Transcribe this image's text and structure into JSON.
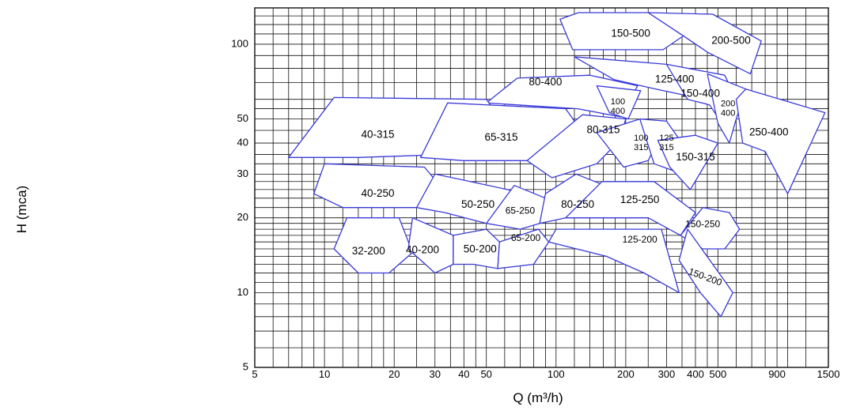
{
  "chart_data": {
    "type": "area",
    "xlabel": "Q (m³/h)",
    "ylabel": "H (mca)",
    "x_scale": "log",
    "y_scale": "log",
    "xlim": [
      5,
      1500
    ],
    "ylim": [
      5,
      140
    ],
    "grid": true,
    "x_ticks": [
      {
        "value": 5,
        "label": "5"
      },
      {
        "value": 10,
        "label": "10"
      },
      {
        "value": 20,
        "label": "20"
      },
      {
        "value": 30,
        "label": "30"
      },
      {
        "value": 40,
        "label": "40"
      },
      {
        "value": 50,
        "label": "50"
      },
      {
        "value": 100,
        "label": "100"
      },
      {
        "value": 200,
        "label": "200"
      },
      {
        "value": 300,
        "label": "300"
      },
      {
        "value": 400,
        "label": "400"
      },
      {
        "value": 500,
        "label": "500"
      },
      {
        "value": 900,
        "label": "900"
      },
      {
        "value": 1500,
        "label": "1500"
      }
    ],
    "y_ticks": [
      {
        "value": 5,
        "label": "5"
      },
      {
        "value": 10,
        "label": "10"
      },
      {
        "value": 20,
        "label": "20"
      },
      {
        "value": 30,
        "label": "30"
      },
      {
        "value": 40,
        "label": "40"
      },
      {
        "value": 50,
        "label": "50"
      },
      {
        "value": 100,
        "label": "100"
      }
    ],
    "colors": {
      "outline": "#3a3ad8",
      "grid": "#111111",
      "text": "#000000"
    },
    "regions": [
      {
        "name": "150-500",
        "label_at": [
          210,
          110
        ],
        "poly": [
          [
            104,
            126
          ],
          [
            125,
            134
          ],
          [
            250,
            134
          ],
          [
            355,
            108
          ],
          [
            290,
            95
          ],
          [
            118,
            95
          ]
        ]
      },
      {
        "name": "200-500",
        "label_at": [
          570,
          103
        ],
        "poly": [
          [
            250,
            134
          ],
          [
            475,
            132
          ],
          [
            770,
            103
          ],
          [
            690,
            76
          ],
          [
            450,
            93
          ],
          [
            355,
            108
          ]
        ]
      },
      {
        "name": "80-400",
        "label_at": [
          90,
          70
        ],
        "poly": [
          [
            50,
            58
          ],
          [
            68,
            73
          ],
          [
            140,
            75
          ],
          [
            225,
            68
          ],
          [
            190,
            51
          ],
          [
            124,
            55
          ]
        ]
      },
      {
        "name": "125-400",
        "label_at": [
          325,
          72
        ],
        "poly": [
          [
            120,
            89
          ],
          [
            300,
            83
          ],
          [
            450,
            76
          ],
          [
            400,
            61
          ],
          [
            270,
            66
          ],
          [
            178,
            72
          ]
        ]
      },
      {
        "name": "100 400",
        "label_at": [
          185,
          56
        ],
        "lines": [
          "100",
          "400"
        ],
        "poly": [
          [
            150,
            68
          ],
          [
            232,
            65
          ],
          [
            205,
            50
          ],
          [
            170,
            53
          ]
        ]
      },
      {
        "name": "150-400",
        "label_at": [
          420,
          63
        ],
        "poly": [
          [
            300,
            83
          ],
          [
            535,
            75
          ],
          [
            600,
            60
          ],
          [
            520,
            48
          ],
          [
            460,
            57
          ],
          [
            370,
            60
          ]
        ]
      },
      {
        "name": "200 400",
        "label_at": [
          553,
          55
        ],
        "lines": [
          "200",
          "400"
        ],
        "poly": [
          [
            450,
            76
          ],
          [
            660,
            66
          ],
          [
            600,
            50
          ],
          [
            560,
            40
          ],
          [
            500,
            48
          ]
        ]
      },
      {
        "name": "250-400",
        "label_at": [
          830,
          44
        ],
        "poly": [
          [
            600,
            60
          ],
          [
            660,
            66
          ],
          [
            1450,
            53
          ],
          [
            1000,
            25
          ],
          [
            800,
            37
          ],
          [
            640,
            40
          ]
        ]
      },
      {
        "name": "40-315",
        "label_at": [
          17,
          43
        ],
        "poly": [
          [
            7,
            35
          ],
          [
            11,
            61
          ],
          [
            50,
            60
          ],
          [
            60,
            47
          ],
          [
            35,
            36
          ],
          [
            14,
            35
          ]
        ]
      },
      {
        "name": "65-315",
        "label_at": [
          58,
          42
        ],
        "poly": [
          [
            26,
            35
          ],
          [
            34,
            58
          ],
          [
            110,
            55
          ],
          [
            126,
            46
          ],
          [
            75,
            34
          ],
          [
            40,
            34
          ]
        ]
      },
      {
        "name": "80-315",
        "label_at": [
          160,
          45
        ],
        "poly": [
          [
            75,
            34
          ],
          [
            130,
            52
          ],
          [
            200,
            50
          ],
          [
            188,
            41
          ],
          [
            150,
            33
          ],
          [
            96,
            29
          ]
        ]
      },
      {
        "name": "100 315",
        "label_at": [
          233,
          40
        ],
        "lines": [
          "100",
          "315"
        ],
        "poly": [
          [
            150,
            44
          ],
          [
            230,
            50
          ],
          [
            275,
            41
          ],
          [
            250,
            34
          ],
          [
            196,
            32
          ]
        ]
      },
      {
        "name": "125 315",
        "label_at": [
          300,
          40
        ],
        "lines": [
          "125",
          "315"
        ],
        "poly": [
          [
            230,
            50
          ],
          [
            300,
            49
          ],
          [
            350,
            40
          ],
          [
            320,
            31
          ],
          [
            265,
            33
          ]
        ]
      },
      {
        "name": "150-315",
        "label_at": [
          400,
          35
        ],
        "poly": [
          [
            275,
            41
          ],
          [
            400,
            43
          ],
          [
            500,
            40
          ],
          [
            380,
            26
          ],
          [
            310,
            32
          ]
        ]
      },
      {
        "name": "40-250",
        "label_at": [
          17,
          25
        ],
        "poly": [
          [
            9,
            25
          ],
          [
            10,
            33
          ],
          [
            27,
            32
          ],
          [
            35,
            24
          ],
          [
            25,
            22
          ],
          [
            12,
            22
          ]
        ]
      },
      {
        "name": "50-250",
        "label_at": [
          46,
          22.5
        ],
        "poly": [
          [
            25,
            22
          ],
          [
            30,
            30
          ],
          [
            75,
            25
          ],
          [
            72,
            21
          ],
          [
            50,
            19
          ],
          [
            33,
            21
          ]
        ]
      },
      {
        "name": "65-250",
        "label_at": [
          70,
          21.3
        ],
        "poly": [
          [
            50,
            19
          ],
          [
            66,
            27
          ],
          [
            90,
            24
          ],
          [
            85,
            19
          ],
          [
            70,
            18
          ]
        ]
      },
      {
        "name": "80-250",
        "label_at": [
          124,
          22.5
        ],
        "poly": [
          [
            85,
            19
          ],
          [
            90,
            25
          ],
          [
            122,
            30
          ],
          [
            180,
            26
          ],
          [
            150,
            21
          ],
          [
            110,
            20
          ]
        ]
      },
      {
        "name": "125-250",
        "label_at": [
          230,
          23.5
        ],
        "poly": [
          [
            110,
            20
          ],
          [
            158,
            28
          ],
          [
            265,
            28
          ],
          [
            400,
            21
          ],
          [
            345,
            17
          ],
          [
            250,
            20
          ]
        ]
      },
      {
        "name": "150-250",
        "label_at": [
          430,
          18.8
        ],
        "poly": [
          [
            345,
            17
          ],
          [
            430,
            22
          ],
          [
            560,
            21
          ],
          [
            620,
            18
          ],
          [
            535,
            15
          ],
          [
            430,
            15
          ]
        ]
      },
      {
        "name": "32-200",
        "label_at": [
          15.5,
          14.6
        ],
        "poly": [
          [
            11,
            15
          ],
          [
            12.5,
            20
          ],
          [
            21,
            20
          ],
          [
            24,
            14.5
          ],
          [
            19,
            12
          ],
          [
            14,
            12
          ]
        ]
      },
      {
        "name": "40-200",
        "label_at": [
          26.5,
          14.8
        ],
        "poly": [
          [
            23,
            15
          ],
          [
            24,
            20
          ],
          [
            36,
            17
          ],
          [
            36,
            13
          ],
          [
            30,
            12
          ]
        ]
      },
      {
        "name": "50-200",
        "label_at": [
          47,
          14.9
        ],
        "poly": [
          [
            36,
            13
          ],
          [
            36,
            17
          ],
          [
            50,
            18
          ],
          [
            57,
            16
          ],
          [
            56,
            12.5
          ],
          [
            44,
            13
          ]
        ]
      },
      {
        "name": "65-200",
        "label_at": [
          74,
          16.5
        ],
        "poly": [
          [
            56,
            12.5
          ],
          [
            57,
            16
          ],
          [
            84,
            18
          ],
          [
            93,
            16
          ],
          [
            80,
            13
          ]
        ]
      },
      {
        "name": "125-200",
        "label_at": [
          230,
          16.3
        ],
        "poly": [
          [
            93,
            16
          ],
          [
            100,
            18
          ],
          [
            160,
            18
          ],
          [
            285,
            18
          ],
          [
            340,
            10
          ],
          [
            240,
            12
          ],
          [
            165,
            14
          ]
        ]
      },
      {
        "name": "150-200",
        "label_at": [
          440,
          11.5
        ],
        "poly": [
          [
            340,
            13.5
          ],
          [
            370,
            18
          ],
          [
            540,
            11
          ],
          [
            580,
            10
          ],
          [
            515,
            8
          ],
          [
            420,
            10
          ]
        ]
      }
    ]
  }
}
